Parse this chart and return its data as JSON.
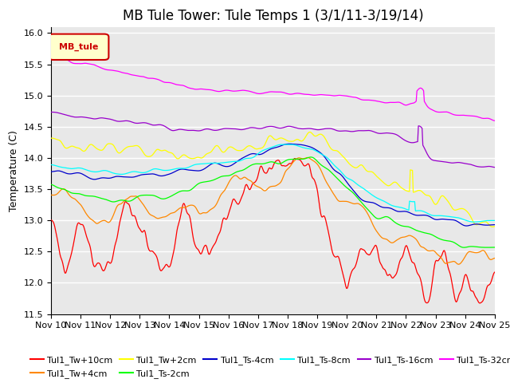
{
  "title": "MB Tule Tower: Tule Temps 1 (3/1/11-3/19/14)",
  "ylabel": "Temperature (C)",
  "xlabel": "",
  "legend_box_label": "MB_tule",
  "ylim": [
    11.5,
    16.1
  ],
  "yticks": [
    11.5,
    12.0,
    12.5,
    13.0,
    13.5,
    14.0,
    14.5,
    15.0,
    15.5,
    16.0
  ],
  "xtick_labels": [
    "Nov 10",
    "Nov 11",
    "Nov 12",
    "Nov 13",
    "Nov 14",
    "Nov 15",
    "Nov 16",
    "Nov 17",
    "Nov 18",
    "Nov 19",
    "Nov 20",
    "Nov 21",
    "Nov 22",
    "Nov 23",
    "Nov 24",
    "Nov 25"
  ],
  "n_points": 600,
  "series": [
    {
      "label": "Tul1_Tw+10cm",
      "color": "#FF0000"
    },
    {
      "label": "Tul1_Tw+4cm",
      "color": "#FF8800"
    },
    {
      "label": "Tul1_Tw+2cm",
      "color": "#FFFF00"
    },
    {
      "label": "Tul1_Ts-2cm",
      "color": "#00FF00"
    },
    {
      "label": "Tul1_Ts-4cm",
      "color": "#0000CC"
    },
    {
      "label": "Tul1_Ts-8cm",
      "color": "#00FFFF"
    },
    {
      "label": "Tul1_Ts-16cm",
      "color": "#9900CC"
    },
    {
      "label": "Tul1_Ts-32cm",
      "color": "#FF00FF"
    }
  ],
  "background_color": "#ffffff",
  "plot_bg_color": "#e8e8e8",
  "grid_color": "#ffffff",
  "title_fontsize": 12,
  "legend_fontsize": 8,
  "tick_fontsize": 8,
  "figsize": [
    6.4,
    4.8
  ],
  "dpi": 100
}
